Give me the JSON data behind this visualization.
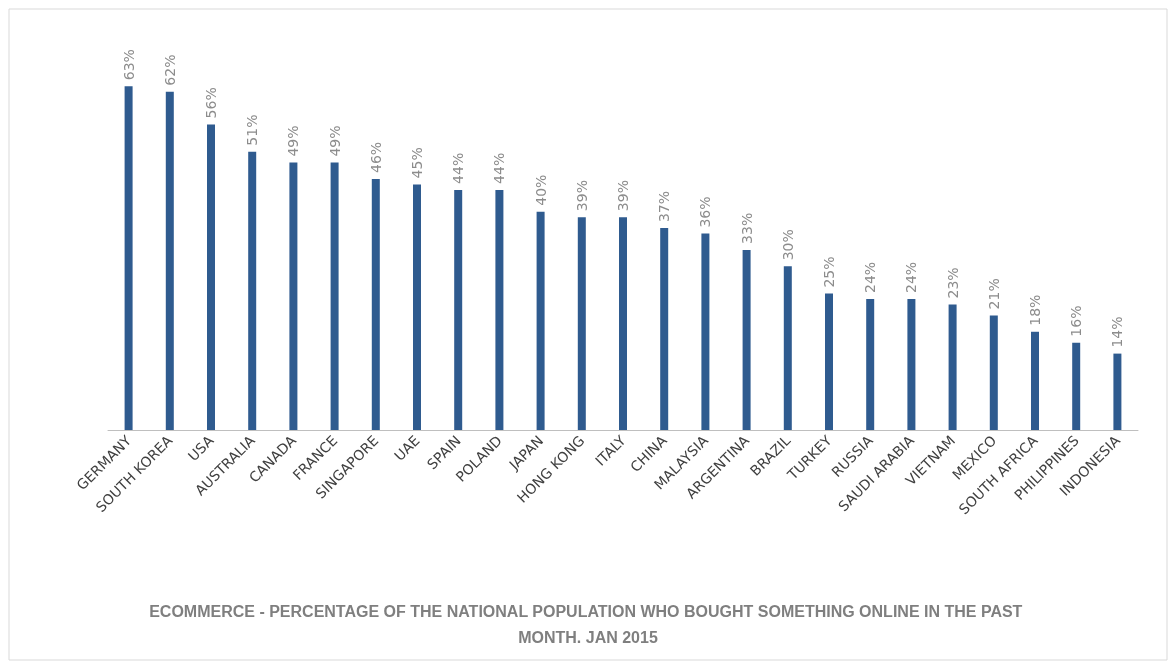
{
  "chart_data": {
    "type": "bar",
    "title": "ECOMMERCE - PERCENTAGE OF THE NATIONAL POPULATION WHO BOUGHT SOMETHING ONLINE IN THE PAST MONTH. JAN 2015",
    "categories": [
      "GERMANY",
      "SOUTH KOREA",
      "USA",
      "AUSTRALIA",
      "CANADA",
      "FRANCE",
      "SINGAPORE",
      "UAE",
      "SPAIN",
      "POLAND",
      "JAPAN",
      "HONG KONG",
      "ITALY",
      "CHINA",
      "MALAYSIA",
      "ARGENTINA",
      "BRAZIL",
      "TURKEY",
      "RUSSIA",
      "SAUDI ARABIA",
      "VIETNAM",
      "MEXICO",
      "SOUTH AFRICA",
      "PHILIPPINES",
      "INDONESIA"
    ],
    "values": [
      63,
      62,
      56,
      51,
      49,
      49,
      46,
      45,
      44,
      44,
      40,
      39,
      39,
      37,
      36,
      33,
      30,
      25,
      24,
      24,
      23,
      21,
      18,
      16,
      14
    ],
    "value_labels": [
      "63%",
      "62%",
      "56%",
      "51%",
      "49%",
      "49%",
      "46%",
      "45%",
      "44%",
      "44%",
      "40%",
      "39%",
      "39%",
      "37%",
      "36%",
      "33%",
      "30%",
      "25%",
      "24%",
      "24%",
      "23%",
      "21%",
      "18%",
      "16%",
      "14%"
    ],
    "color": "#2f5b8f"
  }
}
